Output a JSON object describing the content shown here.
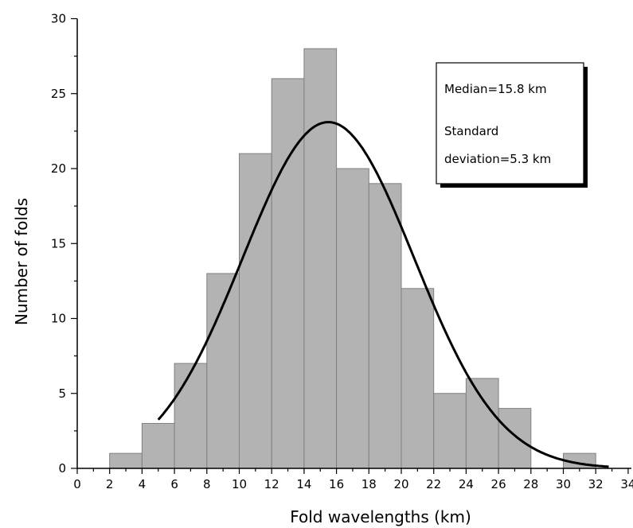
{
  "chart_data": {
    "type": "bar",
    "xlabel": "Fold wavelengths (km)",
    "ylabel": "Number of folds",
    "xlim": [
      0,
      34
    ],
    "ylim": [
      0,
      30
    ],
    "x_ticks": [
      0,
      2,
      4,
      6,
      8,
      10,
      12,
      14,
      16,
      18,
      20,
      22,
      24,
      26,
      28,
      30,
      32,
      34
    ],
    "y_ticks": [
      0,
      5,
      10,
      15,
      20,
      25,
      30
    ],
    "bins": [
      {
        "start": 2,
        "end": 4,
        "count": 1
      },
      {
        "start": 4,
        "end": 6,
        "count": 3
      },
      {
        "start": 6,
        "end": 8,
        "count": 7
      },
      {
        "start": 8,
        "end": 10,
        "count": 13
      },
      {
        "start": 10,
        "end": 12,
        "count": 21
      },
      {
        "start": 12,
        "end": 14,
        "count": 26
      },
      {
        "start": 14,
        "end": 16,
        "count": 28
      },
      {
        "start": 16,
        "end": 18,
        "count": 20
      },
      {
        "start": 18,
        "end": 20,
        "count": 19
      },
      {
        "start": 20,
        "end": 22,
        "count": 12
      },
      {
        "start": 22,
        "end": 24,
        "count": 5
      },
      {
        "start": 24,
        "end": 26,
        "count": 6
      },
      {
        "start": 26,
        "end": 28,
        "count": 4
      },
      {
        "start": 30,
        "end": 32,
        "count": 1
      }
    ],
    "fit_curve": {
      "type": "normal",
      "peak_x": 15.5,
      "peak_y": 23.1,
      "sigma": 5.3,
      "x_range": [
        5,
        32.8
      ]
    },
    "annotation": {
      "lines": [
        "Median=15.8 km",
        "Standard",
        "deviation=5.3 km"
      ]
    },
    "bar_color": "#b3b3b3",
    "bar_edge_color": "#808080",
    "curve_color": "#000000"
  }
}
